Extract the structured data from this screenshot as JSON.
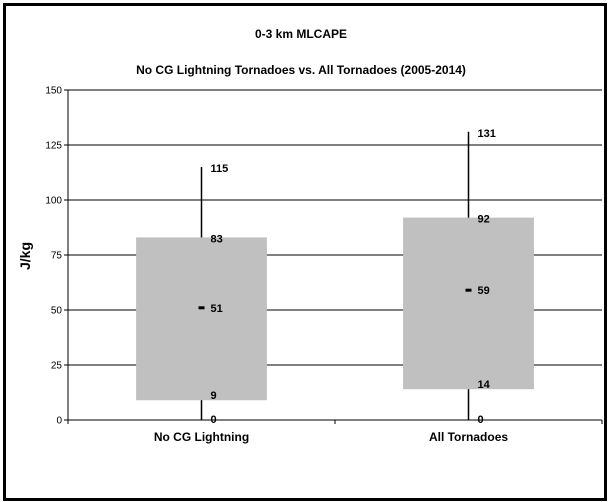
{
  "chart_data": {
    "type": "boxplot",
    "title": "0-3 km MLCAPE",
    "subtitle": "No CG Lightning Tornadoes vs. All Tornadoes (2005-2014)",
    "xlabel": "",
    "ylabel": "J/kg",
    "ylim": [
      0,
      150
    ],
    "yticks": [
      0,
      25,
      50,
      75,
      100,
      125,
      150
    ],
    "grid": true,
    "categories": [
      "No CG Lightning",
      "All Tornadoes"
    ],
    "boxes": [
      {
        "category": "No CG Lightning",
        "min": 0,
        "q1": 9,
        "median": 51,
        "q3": 83,
        "max": 115
      },
      {
        "category": "All Tornadoes",
        "min": 0,
        "q1": 14,
        "median": 59,
        "q3": 92,
        "max": 131
      }
    ],
    "colors": {
      "box": "#c0c0c0",
      "line": "#000000",
      "grid": "#000000"
    }
  }
}
